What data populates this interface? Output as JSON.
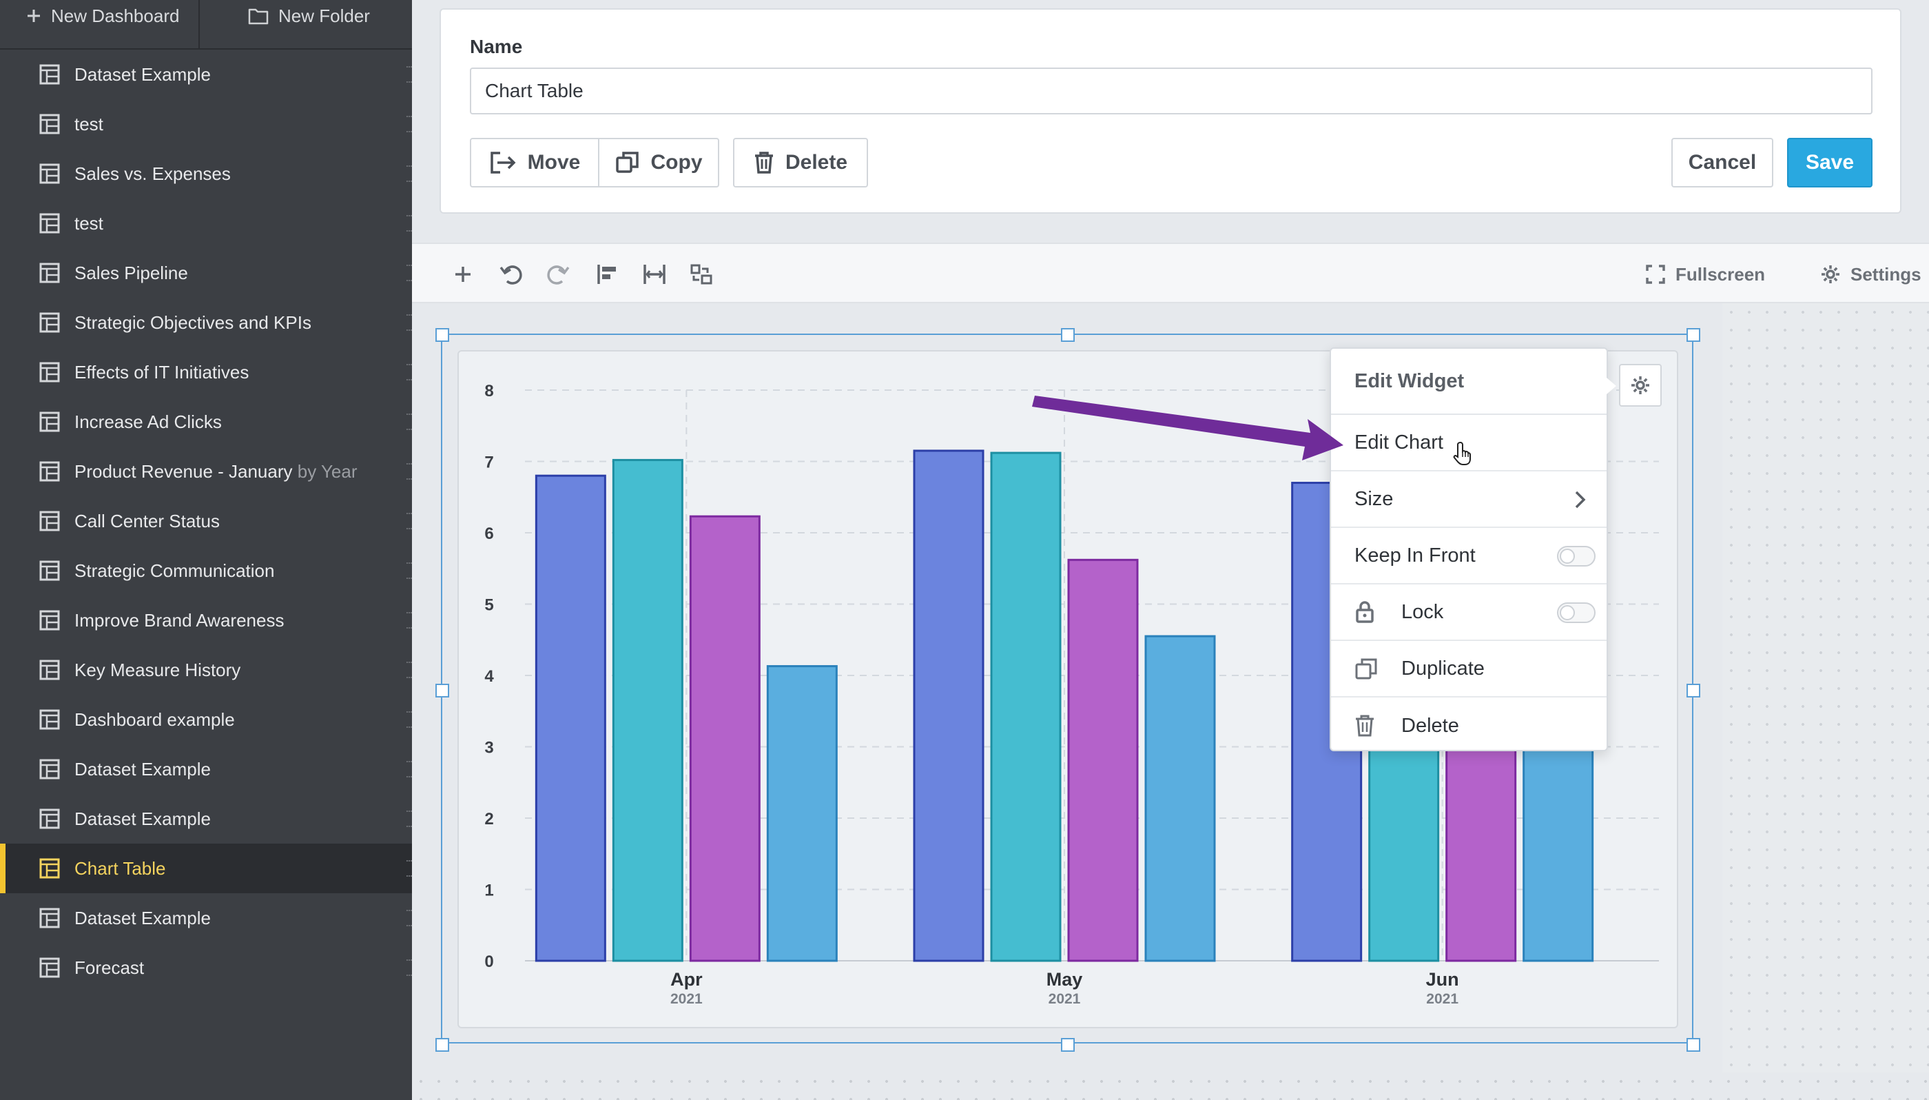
{
  "sidebar": {
    "new_dashboard": "New Dashboard",
    "new_folder": "New Folder",
    "items": [
      {
        "label": "Dataset Example"
      },
      {
        "label": "test"
      },
      {
        "label": "Sales vs. Expenses"
      },
      {
        "label": "test"
      },
      {
        "label": "Sales Pipeline"
      },
      {
        "label": "Strategic Objectives and KPIs"
      },
      {
        "label": "Effects of IT Initiatives"
      },
      {
        "label": "Increase Ad Clicks"
      },
      {
        "label": "Product Revenue - January ",
        "fade": "by Year"
      },
      {
        "label": "Call Center Status"
      },
      {
        "label": "Strategic Communication"
      },
      {
        "label": "Improve Brand Awareness"
      },
      {
        "label": "Key Measure History"
      },
      {
        "label": "Dashboard example"
      },
      {
        "label": "Dataset Example"
      },
      {
        "label": "Dataset Example"
      },
      {
        "label": "Chart Table",
        "active": true
      },
      {
        "label": "Dataset Example"
      },
      {
        "label": "Forecast"
      }
    ]
  },
  "editor": {
    "name_label": "Name",
    "name_value": "Chart Table",
    "move": "Move",
    "copy": "Copy",
    "delete": "Delete",
    "cancel": "Cancel",
    "save": "Save"
  },
  "toolbar": {
    "fullscreen": "Fullscreen",
    "settings": "Settings"
  },
  "menu": {
    "header": "Edit Widget",
    "edit_chart": "Edit Chart",
    "size": "Size",
    "keep_in_front": "Keep In Front",
    "lock": "Lock",
    "duplicate": "Duplicate",
    "delete": "Delete"
  },
  "colors": {
    "series": [
      "#6b84de",
      "#45bdd0",
      "#b462ca",
      "#5aaedf"
    ],
    "series_stroke": [
      "#2c3fa8",
      "#1d8fa2",
      "#7d2aa0",
      "#2b82bb"
    ],
    "accent": "#29a8e0",
    "arrow": "#6f2c99"
  },
  "chart_data": {
    "type": "bar",
    "categories": [
      {
        "month": "Apr",
        "year": "2021"
      },
      {
        "month": "May",
        "year": "2021"
      },
      {
        "month": "Jun",
        "year": "2021"
      }
    ],
    "series": [
      {
        "values": [
          6.8,
          7.15,
          6.7
        ]
      },
      {
        "values": [
          7.02,
          7.12,
          6.3
        ]
      },
      {
        "values": [
          6.23,
          5.62,
          5.6
        ]
      },
      {
        "values": [
          4.13,
          4.55,
          4.8
        ]
      }
    ],
    "yticks": [
      0,
      1,
      2,
      3,
      4,
      5,
      6,
      7,
      8
    ],
    "ylim": [
      0,
      8
    ],
    "grid": true
  }
}
